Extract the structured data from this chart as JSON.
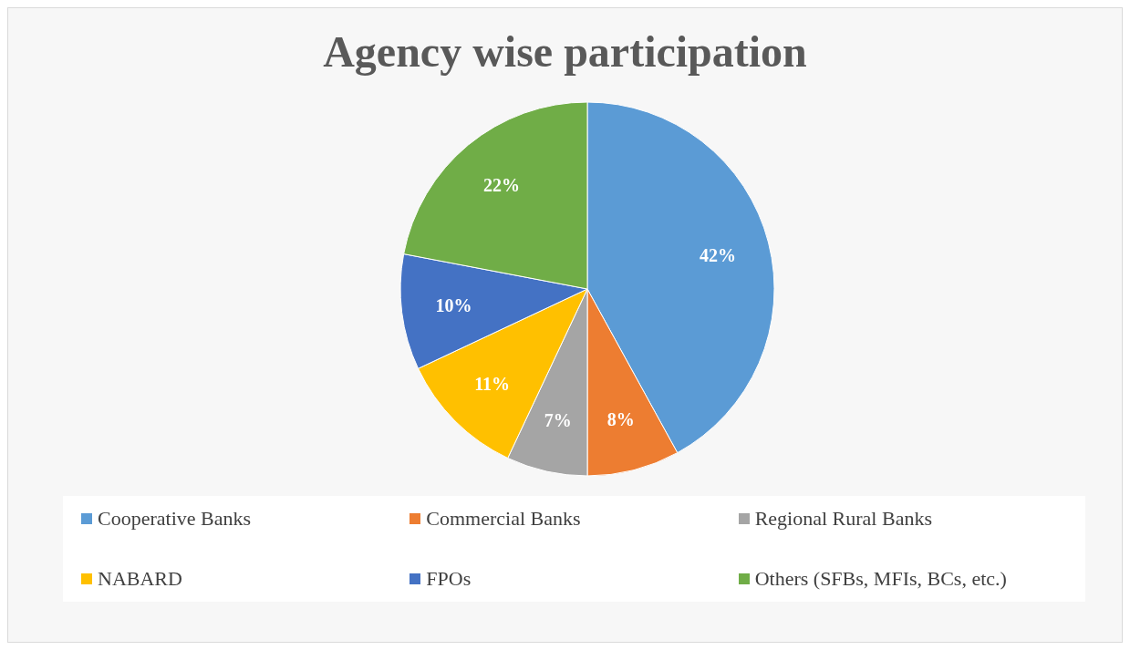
{
  "chart_data": {
    "type": "pie",
    "title": "Agency wise participation",
    "categories": [
      "Cooperative Banks",
      "Commercial Banks",
      "Regional Rural Banks",
      "NABARD",
      "FPOs",
      "Others (SFBs, MFIs, BCs, etc.)"
    ],
    "values": [
      42,
      8,
      7,
      11,
      10,
      22
    ],
    "colors": [
      "#5b9bd5",
      "#ed7d31",
      "#a5a5a5",
      "#ffc000",
      "#4472c4",
      "#70ad47"
    ],
    "value_labels": [
      "42%",
      "8%",
      "7%",
      "11%",
      "10%",
      "22%"
    ],
    "legend": "bottom"
  }
}
